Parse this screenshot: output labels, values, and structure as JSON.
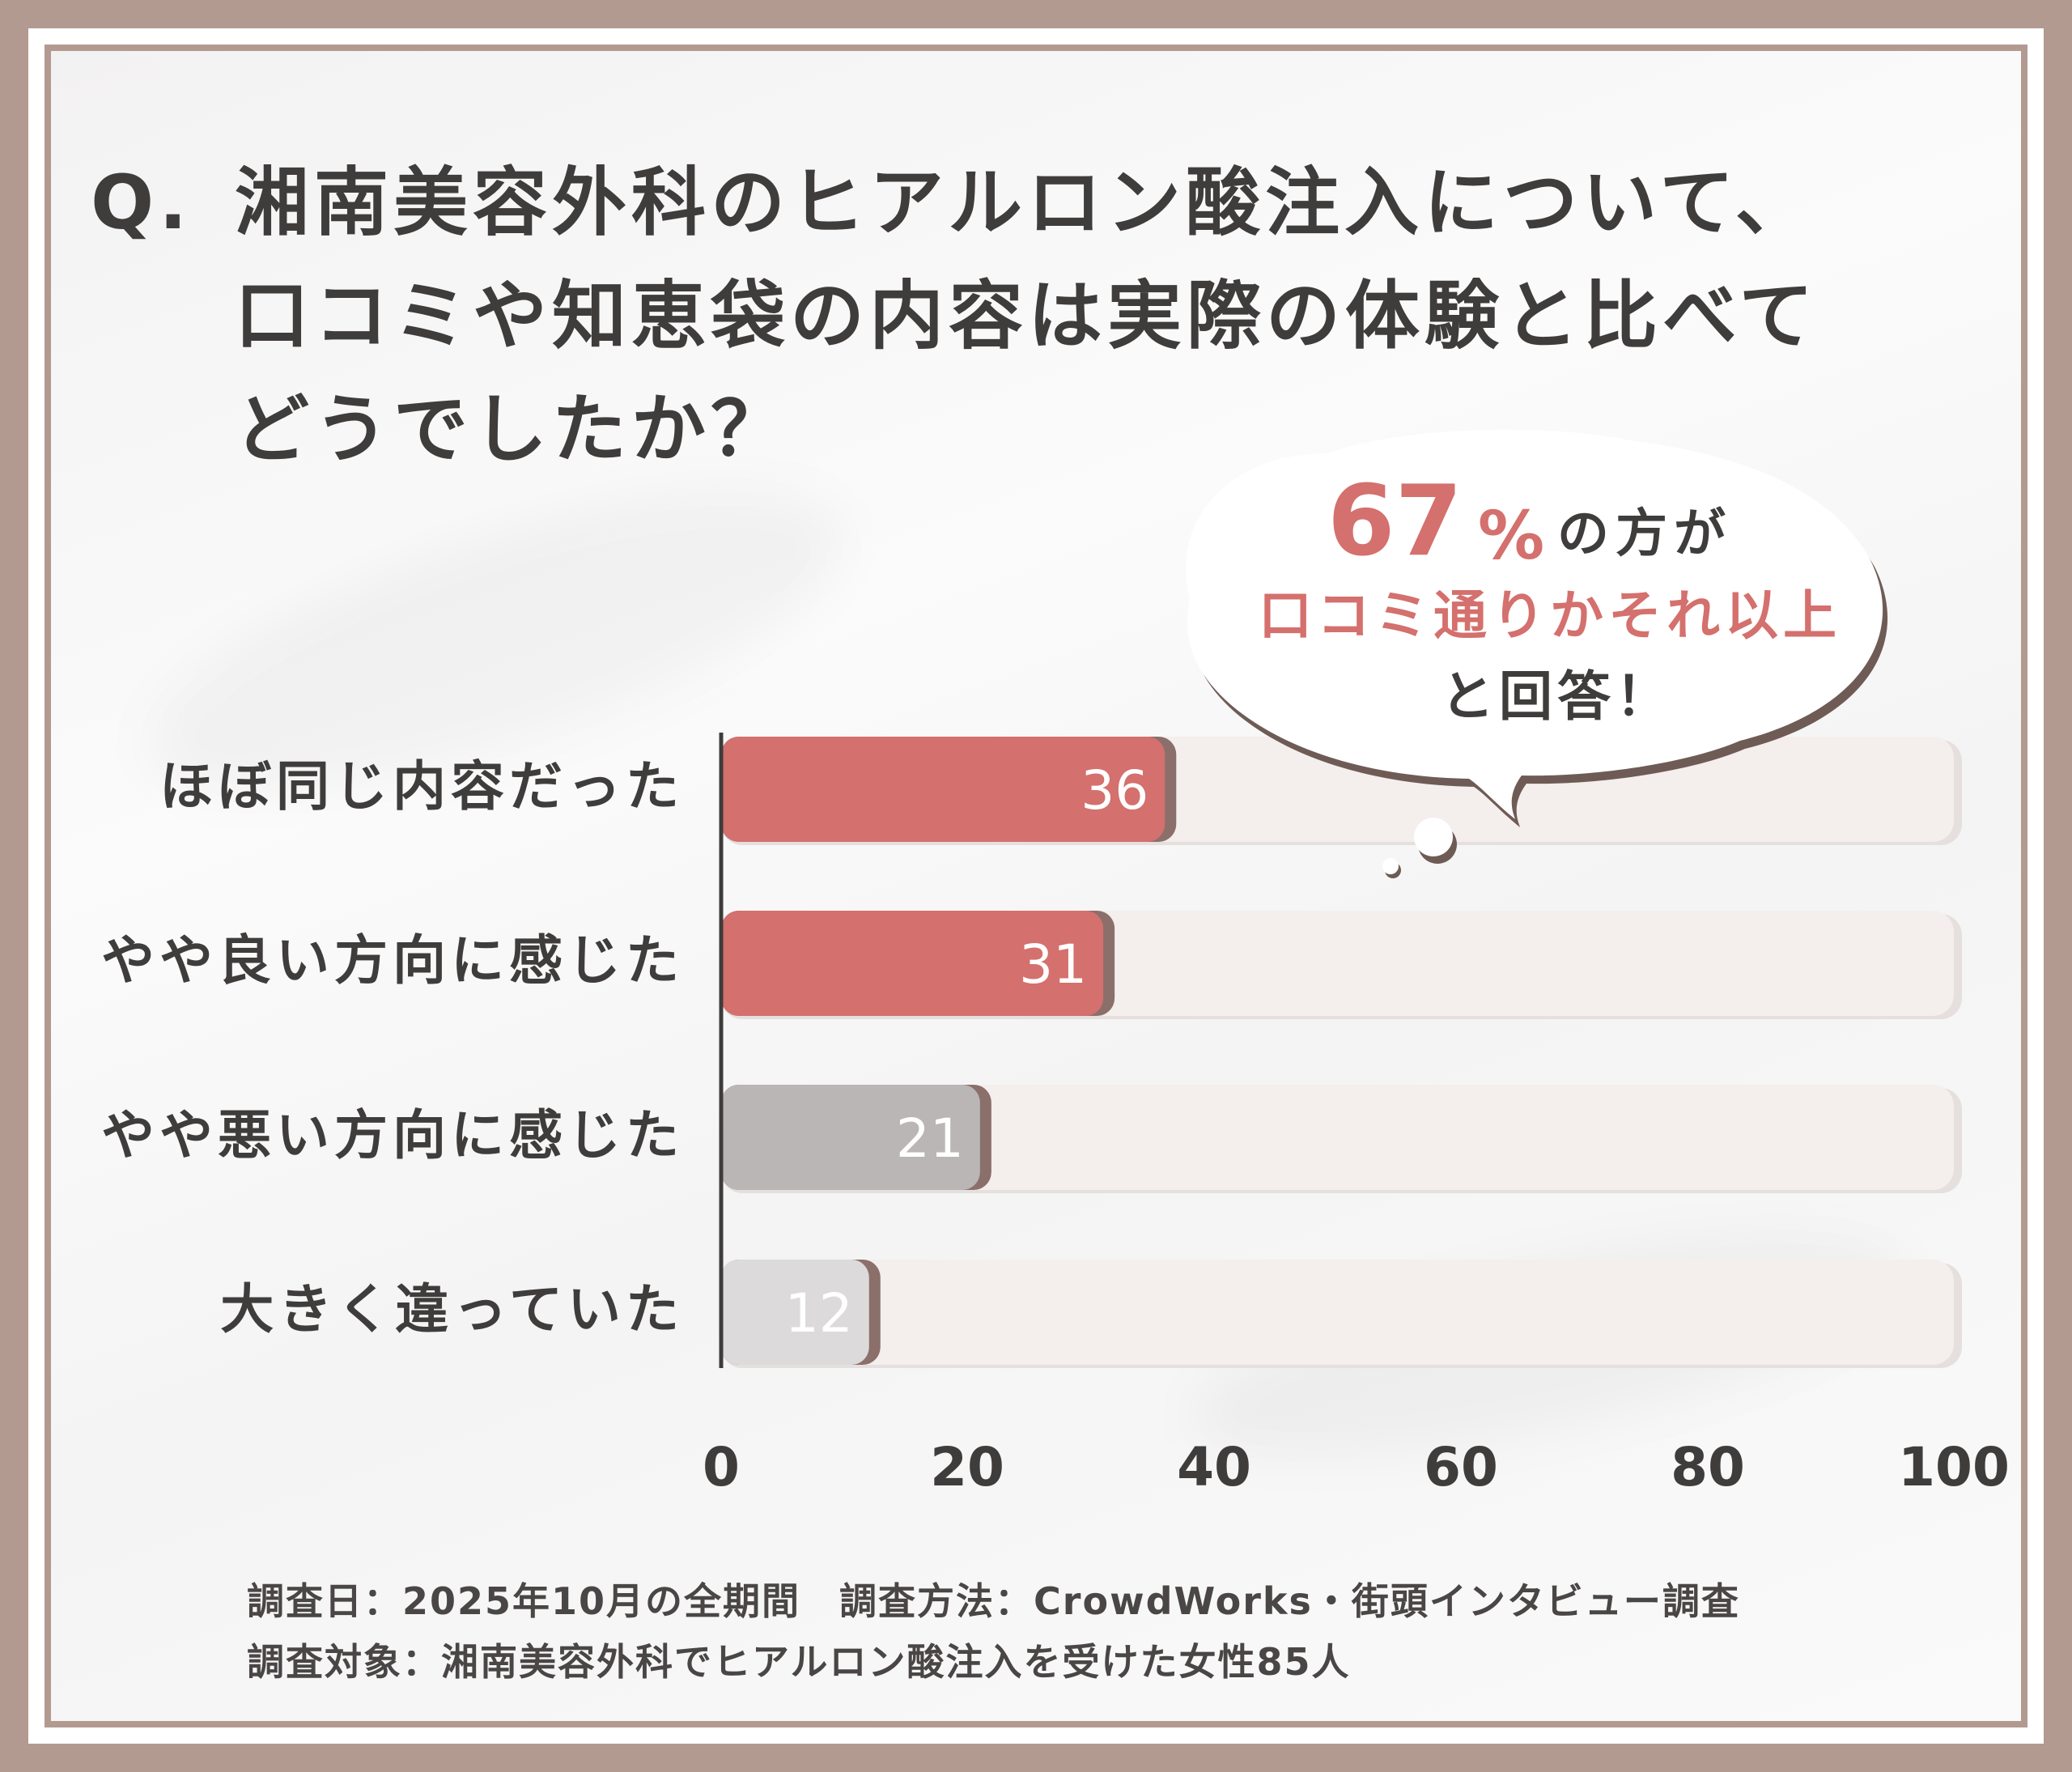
{
  "title": {
    "prefix": "Q.",
    "lines": [
      "湘南美容外科のヒアルロン酸注入について、",
      "口コミや知恵袋の内容は実際の体験と比べて",
      "どうでしたか？"
    ]
  },
  "callout": {
    "number": "67",
    "percent": "%",
    "line1_tail": "の方が",
    "line2": "口コミ通りかそれ以上",
    "line3": "と回答！"
  },
  "colors": {
    "accent": "#d4706d",
    "gray_bar": "#b9b6b5",
    "light_bar": "#dcdada",
    "track": "#f4eeed",
    "frame": "#b39a91",
    "text": "#3f3c3c"
  },
  "chart_data": {
    "type": "bar",
    "orientation": "horizontal",
    "categories": [
      "ほぼ同じ内容だった",
      "やや良い方向に感じた",
      "やや悪い方向に感じた",
      "大きく違っていた"
    ],
    "values": [
      36,
      31,
      21,
      12
    ],
    "value_labels": [
      "36",
      "31",
      "21",
      "12"
    ],
    "xlim": [
      0,
      100
    ],
    "xticks": [
      "0",
      "20",
      "40",
      "60",
      "80",
      "100"
    ],
    "grid": false,
    "bar_colors": [
      "#d4706d",
      "#d4706d",
      "#b9b6b5",
      "#dcdada"
    ]
  },
  "footer": {
    "line1": "調査日：2025年10月の全期間　調査方法：CrowdWorks・街頭インタビュー調査",
    "line2": "調査対象：湘南美容外科でヒアルロン酸注入を受けた女性85人"
  }
}
